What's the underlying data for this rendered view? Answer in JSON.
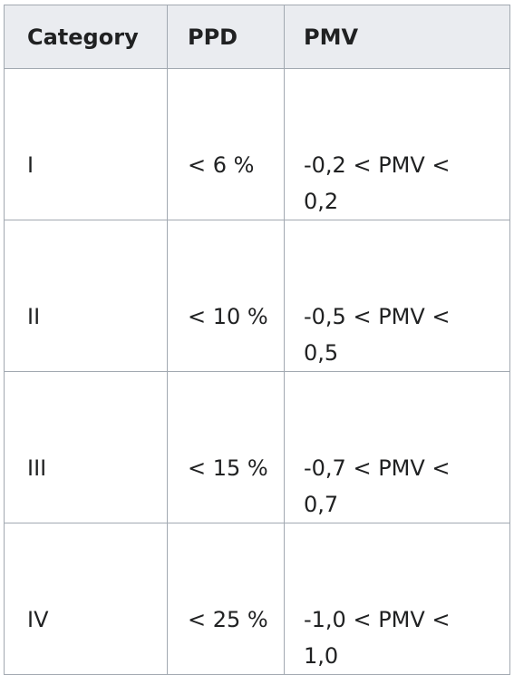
{
  "table": {
    "headers": [
      "Category",
      "PPD",
      "PMV"
    ],
    "rows": [
      {
        "category": "I",
        "ppd": "< 6 %",
        "pmv": "-0,2 < PMV < 0,2"
      },
      {
        "category": "II",
        "ppd": "< 10 %",
        "pmv": "-0,5 < PMV < 0,5"
      },
      {
        "category": "III",
        "ppd": "< 15 %",
        "pmv": "-0,7 < PMV < 0,7"
      },
      {
        "category": "IV",
        "ppd": "< 25 %",
        "pmv": "-1,0 < PMV < 1,0"
      }
    ]
  },
  "colors": {
    "header_background": "#eaecf0",
    "border": "#a2a9b1",
    "text": "#202122"
  }
}
